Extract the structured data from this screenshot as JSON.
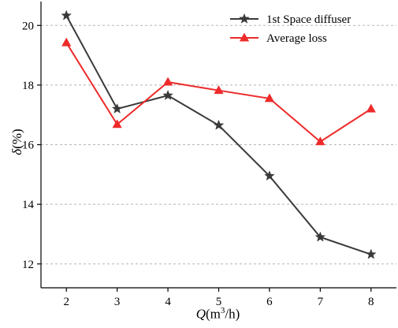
{
  "chart_data": {
    "type": "line",
    "xlabel_var": "Q",
    "xlabel_unit_pre": "(m",
    "xlabel_unit_sup": "3",
    "xlabel_unit_post": "/h)",
    "ylabel_var": "δ",
    "ylabel_unit": "(%)",
    "x": [
      2,
      3,
      4,
      5,
      6,
      7,
      8
    ],
    "xlim": [
      1.5,
      8.5
    ],
    "ylim": [
      11.2,
      20.8
    ],
    "yticks": [
      12,
      14,
      16,
      18,
      20
    ],
    "grid": true,
    "legend_position": "top-right",
    "series": [
      {
        "name": "1st Space diffuser",
        "color": "#3a3a3a",
        "marker": "star",
        "values": [
          20.33,
          17.2,
          17.65,
          16.65,
          14.95,
          12.9,
          12.32
        ]
      },
      {
        "name": "Average loss",
        "color": "#ee2a2a",
        "marker": "triangle",
        "values": [
          19.42,
          16.68,
          18.1,
          17.82,
          17.55,
          16.1,
          17.2
        ]
      }
    ]
  }
}
